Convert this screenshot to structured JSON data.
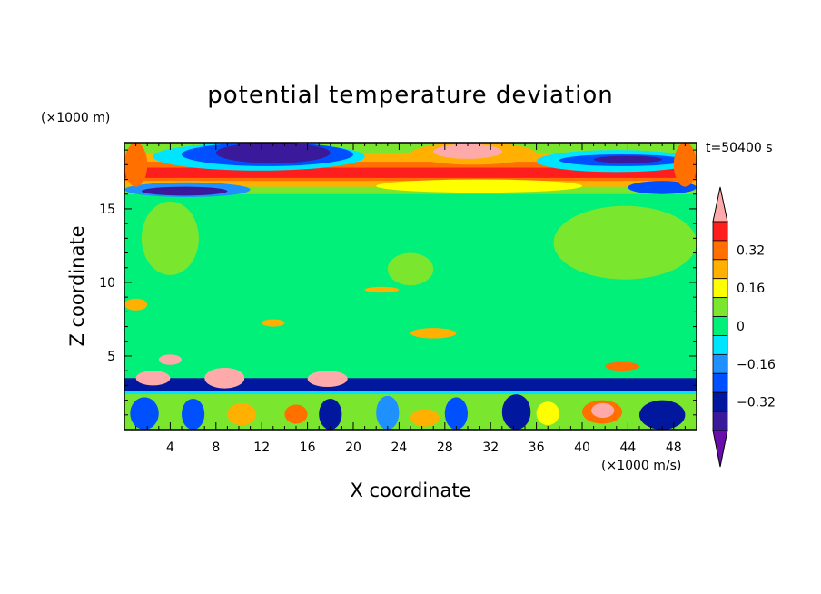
{
  "chart_data": {
    "type": "heatmap",
    "title": "potential temperature deviation",
    "xlabel": "X coordinate",
    "ylabel": "Z coordinate",
    "x_unit": "(×1000 m/s)",
    "y_unit": "(×1000 m)",
    "time_label": "t=50400 s",
    "xlim": [
      0,
      50
    ],
    "ylim": [
      0,
      19.5
    ],
    "x_ticks": [
      4,
      8,
      12,
      16,
      20,
      24,
      28,
      32,
      36,
      40,
      44,
      48
    ],
    "y_ticks": [
      5,
      10,
      15
    ],
    "colorbar": {
      "levels": [
        -0.48,
        -0.4,
        -0.32,
        -0.24,
        -0.16,
        -0.08,
        0,
        0.08,
        0.16,
        0.24,
        0.32,
        0.4,
        0.48
      ],
      "colors": [
        "#6a0dad",
        "#3a1a9a",
        "#00179e",
        "#0050ff",
        "#1e90ff",
        "#00e5ff",
        "#00f07a",
        "#7be62e",
        "#ffff00",
        "#ffb000",
        "#ff7000",
        "#ff1e1e",
        "#ffaaaa"
      ],
      "labels": [
        "0.32",
        "0.16",
        "0",
        "−0.16",
        "−0.32"
      ]
    },
    "regions": [
      {
        "x0": 0,
        "x1": 50,
        "y0": 0,
        "y1": 19.5,
        "level": 0
      },
      {
        "x0": 0,
        "x1": 50,
        "y0": 16.0,
        "y1": 19.5,
        "level": 0.08
      },
      {
        "x0": 0,
        "x1": 50,
        "y0": 16.5,
        "y1": 18.8,
        "level": 0.24
      },
      {
        "x0": 0,
        "x1": 50,
        "y0": 16.9,
        "y1": 18.2,
        "level": 0.32
      },
      {
        "x0": 0,
        "x1": 50,
        "y0": 17.1,
        "y1": 17.8,
        "level": 0.4
      },
      {
        "x0": 2.5,
        "x1": 21,
        "y0": 17.6,
        "y1": 19.5,
        "level": -0.08
      },
      {
        "x0": 5,
        "x1": 20,
        "y0": 17.9,
        "y1": 19.5,
        "level": -0.24
      },
      {
        "x0": 8,
        "x1": 18,
        "y0": 18.1,
        "y1": 19.5,
        "level": -0.4
      },
      {
        "x0": 0,
        "x1": 11,
        "y0": 15.8,
        "y1": 16.8,
        "level": -0.16
      },
      {
        "x0": 1.5,
        "x1": 9,
        "y0": 15.9,
        "y1": 16.5,
        "level": -0.4
      },
      {
        "x0": 25,
        "x1": 36,
        "y0": 18.0,
        "y1": 19.5,
        "level": 0.24
      },
      {
        "x0": 27,
        "x1": 33,
        "y0": 18.4,
        "y1": 19.4,
        "level": 0.48
      },
      {
        "x0": 36,
        "x1": 50,
        "y0": 17.5,
        "y1": 19.0,
        "level": -0.08
      },
      {
        "x0": 38,
        "x1": 49,
        "y0": 17.9,
        "y1": 18.7,
        "level": -0.24
      },
      {
        "x0": 41,
        "x1": 47,
        "y0": 18.1,
        "y1": 18.6,
        "level": -0.4
      },
      {
        "x0": 44,
        "x1": 50,
        "y0": 16.0,
        "y1": 16.9,
        "level": -0.24
      },
      {
        "x0": 22,
        "x1": 40,
        "y0": 16.1,
        "y1": 17.0,
        "level": 0.16
      },
      {
        "x0": 0,
        "x1": 2,
        "y0": 16.5,
        "y1": 19.5,
        "level": 0.32
      },
      {
        "x0": 48,
        "x1": 50,
        "y0": 16.5,
        "y1": 19.5,
        "level": 0.32
      },
      {
        "x0": 37.5,
        "x1": 50,
        "y0": 10.2,
        "y1": 15.2,
        "level": 0.08
      },
      {
        "x0": 1.5,
        "x1": 6.5,
        "y0": 10.5,
        "y1": 15.5,
        "level": 0.08
      },
      {
        "x0": 23,
        "x1": 27,
        "y0": 9.8,
        "y1": 12.0,
        "level": 0.08
      },
      {
        "x0": 0,
        "x1": 50,
        "y0": 2.6,
        "y1": 3.5,
        "level": -0.32
      },
      {
        "x0": 0,
        "x1": 50,
        "y0": 0,
        "y1": 2.6,
        "level": -0.08
      },
      {
        "x0": 0,
        "x1": 50,
        "y0": 0,
        "y1": 2.4,
        "level": 0.08
      },
      {
        "x0": 0.5,
        "x1": 3,
        "y0": 0,
        "y1": 2.2,
        "level": -0.24
      },
      {
        "x0": 5,
        "x1": 7,
        "y0": 0,
        "y1": 2.1,
        "level": -0.24
      },
      {
        "x0": 17,
        "x1": 19,
        "y0": 0,
        "y1": 2.1,
        "level": -0.32
      },
      {
        "x0": 22,
        "x1": 24,
        "y0": 0,
        "y1": 2.3,
        "level": -0.16
      },
      {
        "x0": 28,
        "x1": 30,
        "y0": 0,
        "y1": 2.2,
        "level": -0.24
      },
      {
        "x0": 33,
        "x1": 35.5,
        "y0": 0,
        "y1": 2.4,
        "level": -0.32
      },
      {
        "x0": 45,
        "x1": 49,
        "y0": 0,
        "y1": 2.0,
        "level": -0.32
      },
      {
        "x0": 9,
        "x1": 11.5,
        "y0": 0.3,
        "y1": 1.8,
        "level": 0.24
      },
      {
        "x0": 14,
        "x1": 16,
        "y0": 0.4,
        "y1": 1.7,
        "level": 0.32
      },
      {
        "x0": 25,
        "x1": 27.5,
        "y0": 0.2,
        "y1": 1.4,
        "level": 0.24
      },
      {
        "x0": 36,
        "x1": 38,
        "y0": 0.3,
        "y1": 1.9,
        "level": 0.16
      },
      {
        "x0": 40,
        "x1": 43.5,
        "y0": 0.4,
        "y1": 2.0,
        "level": 0.32
      },
      {
        "x0": 40.8,
        "x1": 42.8,
        "y0": 0.8,
        "y1": 1.8,
        "level": 0.48
      },
      {
        "x0": 1,
        "x1": 4,
        "y0": 3.0,
        "y1": 4.0,
        "level": 0.48
      },
      {
        "x0": 7,
        "x1": 10.5,
        "y0": 2.8,
        "y1": 4.2,
        "level": 0.48
      },
      {
        "x0": 16,
        "x1": 19.5,
        "y0": 2.9,
        "y1": 4.0,
        "level": 0.48
      },
      {
        "x0": 3,
        "x1": 5,
        "y0": 4.4,
        "y1": 5.1,
        "level": 0.48
      },
      {
        "x0": 0,
        "x1": 2,
        "y0": 8.1,
        "y1": 8.9,
        "level": 0.24
      },
      {
        "x0": 12,
        "x1": 14,
        "y0": 7.0,
        "y1": 7.5,
        "level": 0.24
      },
      {
        "x0": 25,
        "x1": 29,
        "y0": 6.2,
        "y1": 6.9,
        "level": 0.24
      },
      {
        "x0": 42,
        "x1": 45,
        "y0": 4.0,
        "y1": 4.6,
        "level": 0.32
      },
      {
        "x0": 21,
        "x1": 24,
        "y0": 9.3,
        "y1": 9.7,
        "level": 0.24
      }
    ]
  }
}
